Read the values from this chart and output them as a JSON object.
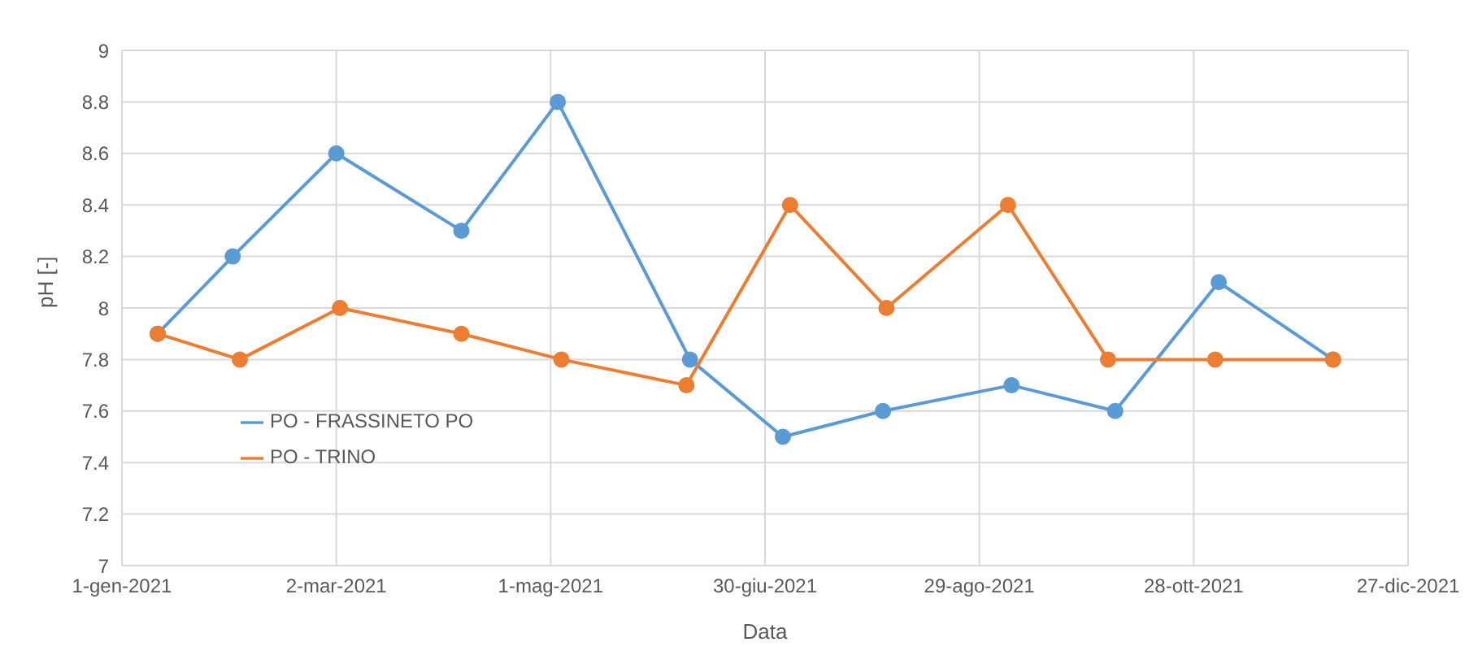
{
  "chart_data": {
    "type": "line",
    "xlabel": "Data",
    "ylabel": "pH [-]",
    "xlim": [
      "2021-01-01",
      "2021-12-27"
    ],
    "xticks": [
      {
        "value": "2021-01-01",
        "label": "1-gen-2021"
      },
      {
        "value": "2021-03-02",
        "label": "2-mar-2021"
      },
      {
        "value": "2021-05-01",
        "label": "1-mag-2021"
      },
      {
        "value": "2021-06-30",
        "label": "30-giu-2021"
      },
      {
        "value": "2021-08-29",
        "label": "29-ago-2021"
      },
      {
        "value": "2021-10-28",
        "label": "28-ott-2021"
      },
      {
        "value": "2021-12-27",
        "label": "27-dic-2021"
      }
    ],
    "ylim": [
      7,
      9
    ],
    "yticks": [
      7,
      7.2,
      7.4,
      7.6,
      7.8,
      8,
      8.2,
      8.4,
      8.6,
      8.8,
      9
    ],
    "grid": true,
    "legend": "left",
    "marker": "circle",
    "line_style": "solid",
    "series": [
      {
        "name": "PO - FRASSINETO PO",
        "color": "#5b9bd5",
        "x": [
          "2021-01-11",
          "2021-02-01",
          "2021-03-02",
          "2021-04-06",
          "2021-05-03",
          "2021-06-09",
          "2021-07-05",
          "2021-08-02",
          "2021-09-07",
          "2021-10-06",
          "2021-11-04",
          "2021-12-06"
        ],
        "values": [
          7.9,
          8.2,
          8.6,
          8.3,
          8.8,
          7.8,
          7.5,
          7.6,
          7.7,
          7.6,
          8.1,
          7.8
        ]
      },
      {
        "name": "PO - TRINO",
        "color": "#ed7d31",
        "x": [
          "2021-01-11",
          "2021-02-03",
          "2021-03-03",
          "2021-04-06",
          "2021-05-04",
          "2021-06-08",
          "2021-07-07",
          "2021-08-03",
          "2021-09-06",
          "2021-10-04",
          "2021-11-03",
          "2021-12-06"
        ],
        "values": [
          7.9,
          7.8,
          8.0,
          7.9,
          7.8,
          7.7,
          8.4,
          8.0,
          8.4,
          7.8,
          7.8,
          7.8
        ]
      }
    ]
  }
}
